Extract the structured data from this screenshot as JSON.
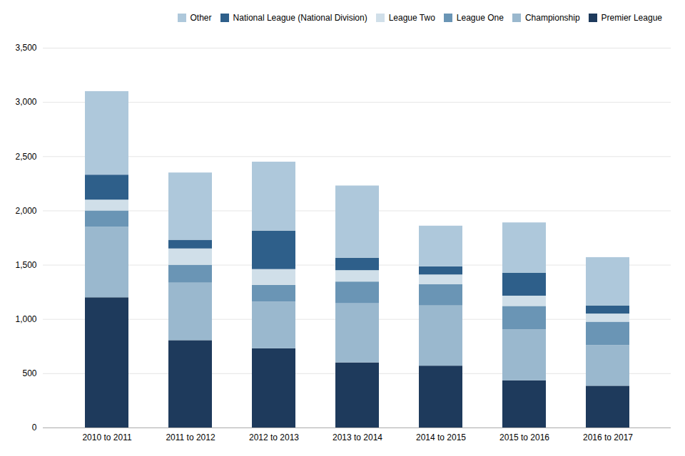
{
  "chart_data": {
    "type": "bar",
    "stacked": true,
    "categories": [
      "2010 to 2011",
      "2011 to 2012",
      "2012 to 2013",
      "2013 to 2014",
      "2014 to 2015",
      "2015 to 2016",
      "2016 to 2017"
    ],
    "series": [
      {
        "name": "Premier League",
        "color": "#1e3a5c",
        "values": [
          1200,
          805,
          730,
          600,
          570,
          435,
          385
        ]
      },
      {
        "name": "Championship",
        "color": "#9ab8ce",
        "values": [
          650,
          530,
          430,
          545,
          555,
          470,
          375
        ]
      },
      {
        "name": "League One",
        "color": "#6a95b5",
        "values": [
          150,
          165,
          155,
          200,
          195,
          215,
          215
        ]
      },
      {
        "name": "League Two",
        "color": "#d0dfe9",
        "values": [
          100,
          150,
          145,
          105,
          90,
          95,
          75
        ]
      },
      {
        "name": "National League (National Division)",
        "color": "#2e5f8a",
        "values": [
          230,
          80,
          355,
          115,
          75,
          210,
          75
        ]
      },
      {
        "name": "Other",
        "color": "#aec8db",
        "values": [
          770,
          620,
          635,
          665,
          375,
          465,
          445
        ]
      }
    ],
    "ylim": [
      0,
      3500
    ],
    "yticks": [
      0,
      500,
      {
        "value": 1000,
        "label": "1,000"
      },
      {
        "value": 1500,
        "label": "1,500"
      },
      {
        "value": 2000,
        "label": "2,000"
      },
      {
        "value": 2500,
        "label": "2,500"
      },
      {
        "value": 3000,
        "label": "3,000"
      },
      {
        "value": 3500,
        "label": "3,500"
      }
    ],
    "grid": true,
    "legend": "upper right"
  }
}
